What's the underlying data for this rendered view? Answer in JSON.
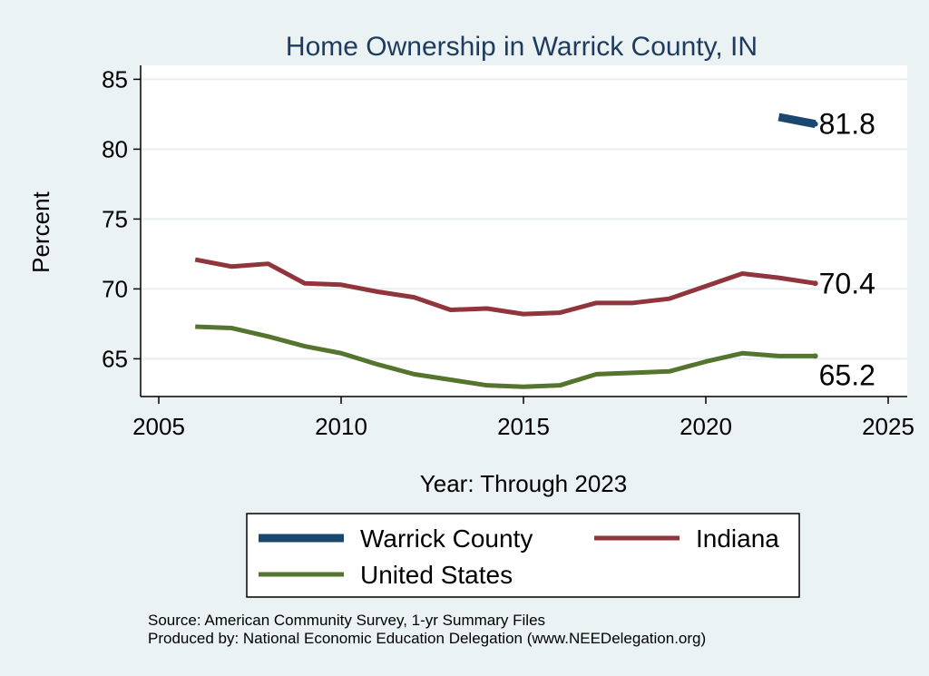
{
  "chart_data": {
    "type": "line",
    "title": "Home Ownership in Warrick County, IN",
    "xlabel": "Year: Through 2023",
    "ylabel": "Percent",
    "xlim": [
      2005,
      2025
    ],
    "ylim": [
      62.3,
      86
    ],
    "xticks": [
      2005,
      2010,
      2015,
      2020,
      2025
    ],
    "yticks": [
      65,
      70,
      75,
      80,
      85
    ],
    "grid": true,
    "legend_position": "bottom",
    "series": [
      {
        "name": "Warrick County",
        "color": "#1a476f",
        "x": [
          2022,
          2023
        ],
        "values": [
          82.3,
          81.8
        ],
        "end_label": "81.8"
      },
      {
        "name": "Indiana",
        "color": "#90353b",
        "x": [
          2006,
          2007,
          2008,
          2009,
          2010,
          2011,
          2012,
          2013,
          2014,
          2015,
          2016,
          2017,
          2018,
          2019,
          2020,
          2021,
          2022,
          2023
        ],
        "values": [
          72.1,
          71.6,
          71.8,
          70.4,
          70.3,
          69.8,
          69.4,
          68.5,
          68.6,
          68.2,
          68.3,
          69.0,
          69.0,
          69.3,
          70.2,
          71.1,
          70.8,
          70.4
        ],
        "end_label": "70.4"
      },
      {
        "name": "United States",
        "color": "#55752f",
        "x": [
          2006,
          2007,
          2008,
          2009,
          2010,
          2011,
          2012,
          2013,
          2014,
          2015,
          2016,
          2017,
          2018,
          2019,
          2020,
          2021,
          2022,
          2023
        ],
        "values": [
          67.3,
          67.2,
          66.6,
          65.9,
          65.4,
          64.6,
          63.9,
          63.5,
          63.1,
          63.0,
          63.1,
          63.9,
          64.0,
          64.1,
          64.8,
          65.4,
          65.2,
          65.2
        ],
        "end_label": "65.2"
      }
    ],
    "source_lines": [
      "Source: American Community Survey, 1-yr Summary Files",
      "Produced by: National Economic Education Delegation (www.NEEDelegation.org)"
    ]
  }
}
